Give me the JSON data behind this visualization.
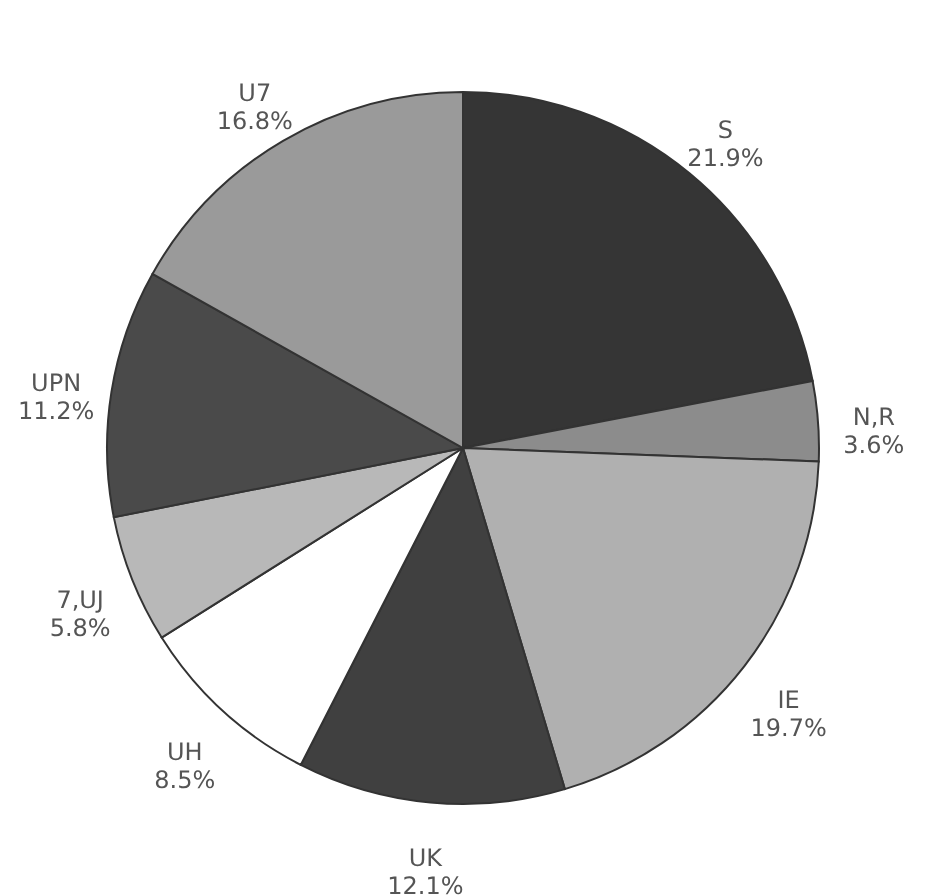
{
  "chart_data": {
    "type": "pie",
    "categories": [
      "S",
      "N,R",
      "IE",
      "UK",
      "UH",
      "7,UJ",
      "UPN",
      "U7"
    ],
    "values": [
      21.9,
      3.6,
      19.7,
      12.1,
      8.5,
      5.8,
      11.2,
      16.8
    ],
    "value_labels": [
      "21.9%",
      "3.6%",
      "19.7%",
      "12.1%",
      "8.5%",
      "5.8%",
      "11.2%",
      "16.8%"
    ],
    "colors": [
      "#353535",
      "#8c8c8c",
      "#b0b0b0",
      "#404040",
      "#ffffff",
      "#b8b8b8",
      "#4a4a4a",
      "#9a9a9a"
    ]
  }
}
